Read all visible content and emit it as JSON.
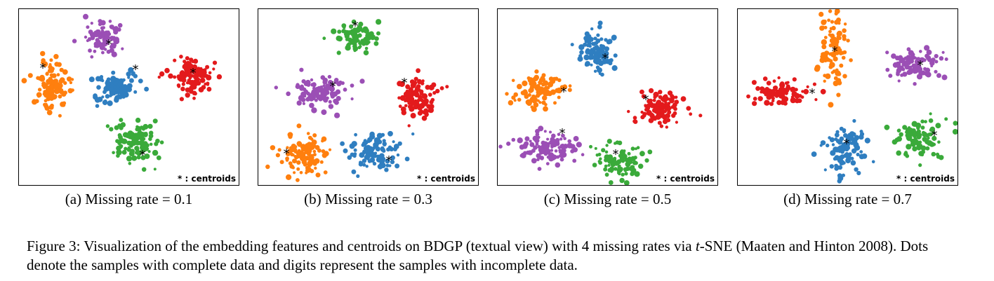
{
  "figure_caption": {
    "part1": "Figure 3: Visualization of the embedding features and centroids on BDGP (textual view) with 4 missing rates via ",
    "t": "t",
    "part2": "-SNE (Maaten and Hinton 2008). Dots denote the samples with complete data and digits represent the samples with incomplete data."
  },
  "colors": {
    "orange": "#ff7f0e",
    "purple": "#9b4fb5",
    "blue": "#2f7ec0",
    "red": "#e31a1c",
    "green": "#3aaa3a"
  },
  "chart_data": [
    {
      "type": "scatter",
      "title": "",
      "caption": "(a) Missing rate = 0.1",
      "legend_note": "* : centroids",
      "xlim": [
        0,
        313
      ],
      "ylim": [
        0,
        251
      ],
      "clusters": [
        {
          "color": "#ff7f0e",
          "center": [
            48,
            110
          ],
          "spread": [
            20,
            28
          ],
          "count": 110,
          "centroid": [
            34,
            82
          ]
        },
        {
          "color": "#9b4fb5",
          "center": [
            120,
            45
          ],
          "spread": [
            22,
            20
          ],
          "count": 90,
          "centroid": [
            128,
            48
          ]
        },
        {
          "color": "#2f7ec0",
          "center": [
            140,
            110
          ],
          "spread": [
            25,
            18
          ],
          "count": 100,
          "centroid": [
            166,
            84
          ]
        },
        {
          "color": "#e31a1c",
          "center": [
            248,
            95
          ],
          "spread": [
            24,
            22
          ],
          "count": 110,
          "centroid": [
            248,
            89
          ]
        },
        {
          "color": "#3aaa3a",
          "center": [
            165,
            190
          ],
          "spread": [
            26,
            25
          ],
          "count": 100,
          "centroid": [
            176,
            206
          ]
        }
      ]
    },
    {
      "type": "scatter",
      "title": "",
      "caption": "(b) Missing rate = 0.3",
      "legend_note": "* : centroids",
      "xlim": [
        0,
        313
      ],
      "ylim": [
        0,
        251
      ],
      "clusters": [
        {
          "color": "#3aaa3a",
          "center": [
            140,
            40
          ],
          "spread": [
            25,
            18
          ],
          "count": 90,
          "centroid": [
            138,
            22
          ]
        },
        {
          "color": "#9b4fb5",
          "center": [
            90,
            120
          ],
          "spread": [
            35,
            20
          ],
          "count": 100,
          "centroid": [
            106,
            108
          ]
        },
        {
          "color": "#e31a1c",
          "center": [
            225,
            125
          ],
          "spread": [
            24,
            22
          ],
          "count": 110,
          "centroid": [
            208,
            103
          ]
        },
        {
          "color": "#ff7f0e",
          "center": [
            60,
            210
          ],
          "spread": [
            28,
            25
          ],
          "count": 110,
          "centroid": [
            40,
            204
          ]
        },
        {
          "color": "#2f7ec0",
          "center": [
            165,
            205
          ],
          "spread": [
            30,
            22
          ],
          "count": 100,
          "centroid": [
            186,
            214
          ]
        }
      ]
    },
    {
      "type": "scatter",
      "title": "",
      "caption": "(c) Missing rate = 0.5",
      "legend_note": "* : centroids",
      "xlim": [
        0,
        313
      ],
      "ylim": [
        0,
        251
      ],
      "clusters": [
        {
          "color": "#2f7ec0",
          "center": [
            140,
            60
          ],
          "spread": [
            22,
            25
          ],
          "count": 90,
          "centroid": [
            153,
            68
          ]
        },
        {
          "color": "#ff7f0e",
          "center": [
            60,
            115
          ],
          "spread": [
            28,
            18
          ],
          "count": 100,
          "centroid": [
            94,
            116
          ]
        },
        {
          "color": "#e31a1c",
          "center": [
            230,
            140
          ],
          "spread": [
            28,
            22
          ],
          "count": 100,
          "centroid": [
            211,
            127
          ]
        },
        {
          "color": "#9b4fb5",
          "center": [
            70,
            200
          ],
          "spread": [
            38,
            16
          ],
          "count": 110,
          "centroid": [
            92,
            175
          ]
        },
        {
          "color": "#3aaa3a",
          "center": [
            175,
            220
          ],
          "spread": [
            28,
            20
          ],
          "count": 90,
          "centroid": [
            168,
            205
          ]
        }
      ]
    },
    {
      "type": "scatter",
      "title": "",
      "caption": "(d) Missing rate = 0.7",
      "legend_note": "* : centroids",
      "xlim": [
        0,
        313
      ],
      "ylim": [
        0,
        251
      ],
      "clusters": [
        {
          "color": "#ff7f0e",
          "center": [
            135,
            60
          ],
          "spread": [
            18,
            40
          ],
          "count": 100,
          "centroid": [
            138,
            58
          ]
        },
        {
          "color": "#9b4fb5",
          "center": [
            250,
            80
          ],
          "spread": [
            32,
            18
          ],
          "count": 90,
          "centroid": [
            260,
            78
          ]
        },
        {
          "color": "#e31a1c",
          "center": [
            60,
            120
          ],
          "spread": [
            32,
            14
          ],
          "count": 90,
          "centroid": [
            106,
            118
          ]
        },
        {
          "color": "#2f7ec0",
          "center": [
            155,
            200
          ],
          "spread": [
            22,
            28
          ],
          "count": 100,
          "centroid": [
            155,
            190
          ]
        },
        {
          "color": "#3aaa3a",
          "center": [
            260,
            185
          ],
          "spread": [
            30,
            25
          ],
          "count": 100,
          "centroid": [
            280,
            178
          ]
        }
      ]
    }
  ]
}
